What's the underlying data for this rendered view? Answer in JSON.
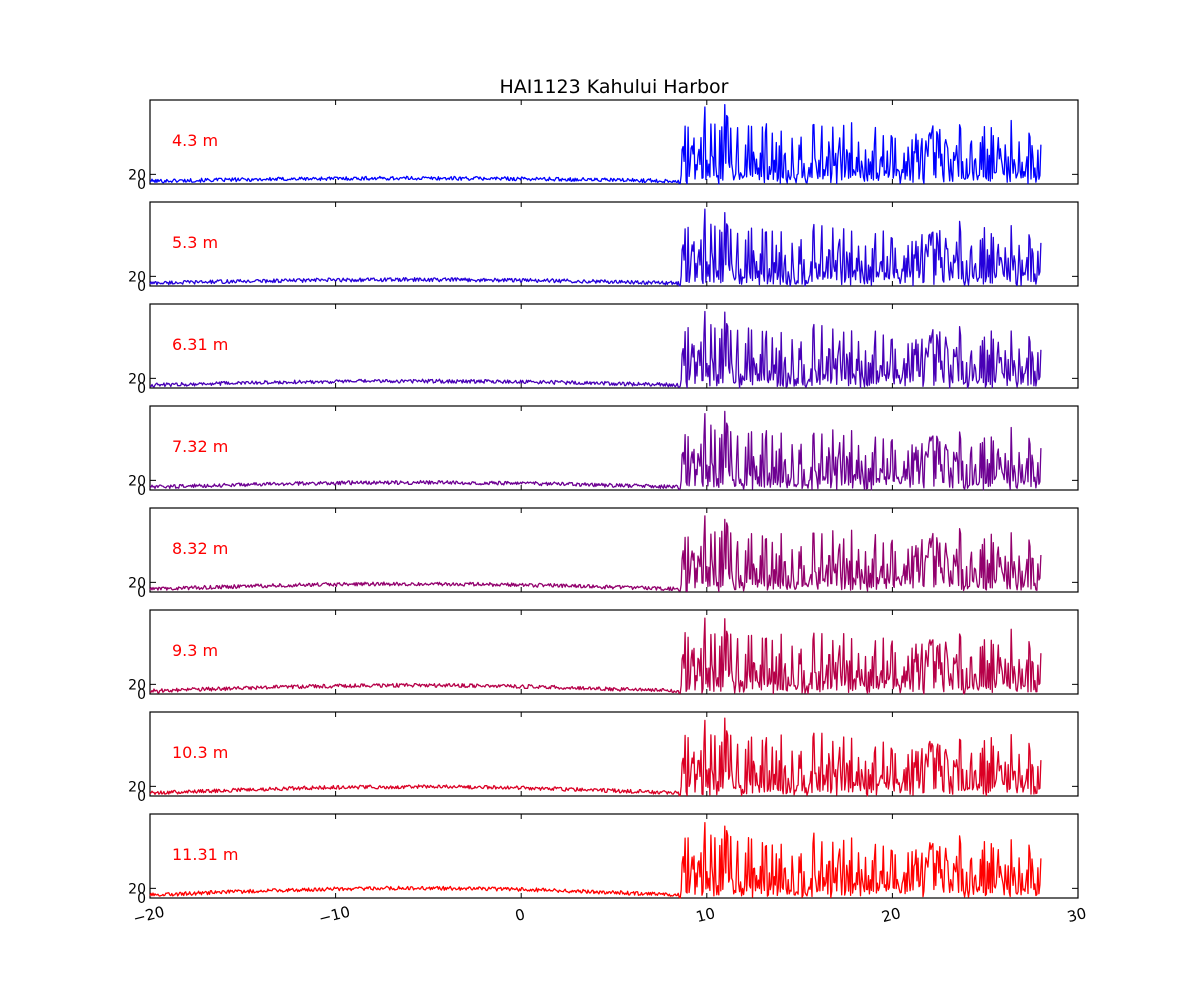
{
  "chart_data": {
    "type": "line",
    "title": "HAI1123   Kahului Harbor",
    "xlim": [
      -20,
      30
    ],
    "x_ticks": [
      -20,
      -10,
      0,
      10,
      20,
      30
    ],
    "y_ticks": [
      0,
      20
    ],
    "panels": [
      {
        "label": "4.3 m",
        "color": "#0000ff"
      },
      {
        "label": "5.3 m",
        "color": "#2400db"
      },
      {
        "label": "6.31 m",
        "color": "#4800b6"
      },
      {
        "label": "7.32 m",
        "color": "#6d0092"
      },
      {
        "label": "8.32 m",
        "color": "#92006d"
      },
      {
        "label": "9.3 m",
        "color": "#b60048"
      },
      {
        "label": "10.3 m",
        "color": "#db0024"
      },
      {
        "label": "11.31 m",
        "color": "#ff0000"
      }
    ],
    "signal_onset_x": 8.5,
    "x_end": 28
  }
}
